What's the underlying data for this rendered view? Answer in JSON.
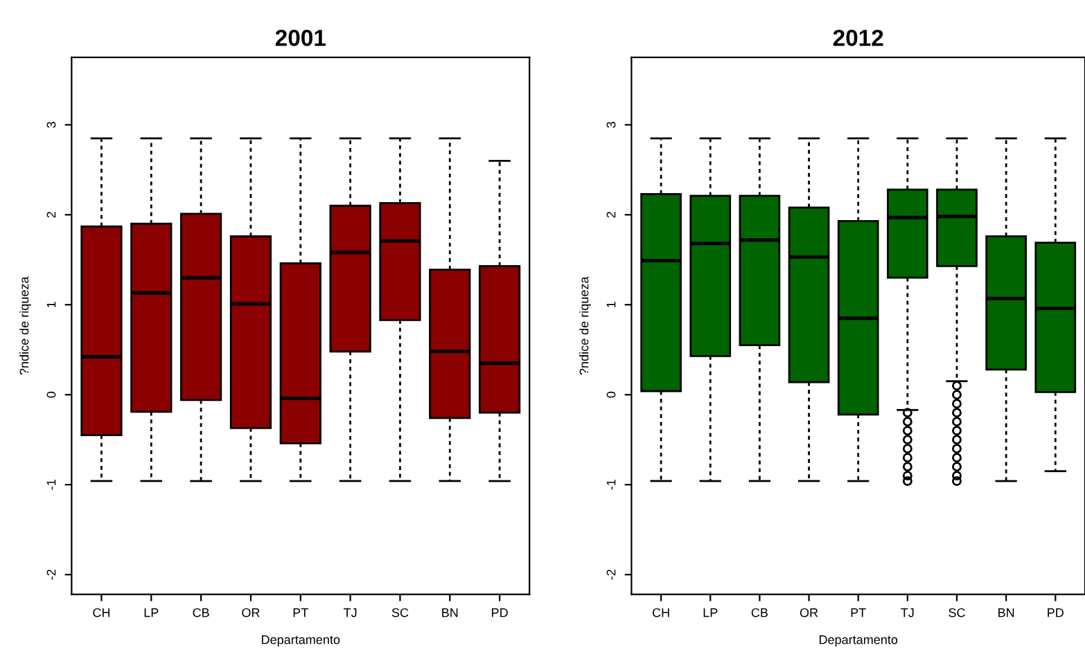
{
  "chart_data": [
    {
      "type": "box",
      "title": "2001",
      "xlabel": "Departamento",
      "ylabel": "?ndice de riqueza",
      "categories": [
        "CH",
        "LP",
        "CB",
        "OR",
        "PT",
        "TJ",
        "SC",
        "BN",
        "PD"
      ],
      "color": "#8b0000",
      "ylim": [
        -2.22,
        3.75
      ],
      "yticks": [
        -2,
        -1,
        0,
        1,
        2,
        3
      ],
      "grid": false,
      "boxes": [
        {
          "low": -0.96,
          "q1": -0.45,
          "median": 0.42,
          "q3": 1.87,
          "high": 2.85
        },
        {
          "low": -0.96,
          "q1": -0.19,
          "median": 1.13,
          "q3": 1.9,
          "high": 2.85
        },
        {
          "low": -0.96,
          "q1": -0.06,
          "median": 1.3,
          "q3": 2.01,
          "high": 2.85
        },
        {
          "low": -0.96,
          "q1": -0.37,
          "median": 1.01,
          "q3": 1.76,
          "high": 2.85
        },
        {
          "low": -0.96,
          "q1": -0.54,
          "median": -0.04,
          "q3": 1.46,
          "high": 2.85
        },
        {
          "low": -0.96,
          "q1": 0.48,
          "median": 1.58,
          "q3": 2.1,
          "high": 2.85
        },
        {
          "low": -0.96,
          "q1": 0.83,
          "median": 1.71,
          "q3": 2.13,
          "high": 2.85
        },
        {
          "low": -0.96,
          "q1": -0.26,
          "median": 0.48,
          "q3": 1.39,
          "high": 2.85
        },
        {
          "low": -0.96,
          "q1": -0.2,
          "median": 0.35,
          "q3": 1.43,
          "high": 2.6
        }
      ]
    },
    {
      "type": "box",
      "title": "2012",
      "xlabel": "Departamento",
      "ylabel": "?ndice de riqueza",
      "categories": [
        "CH",
        "LP",
        "CB",
        "OR",
        "PT",
        "TJ",
        "SC",
        "BN",
        "PD"
      ],
      "color": "#006400",
      "ylim": [
        -2.22,
        3.75
      ],
      "yticks": [
        -2,
        -1,
        0,
        1,
        2,
        3
      ],
      "grid": false,
      "boxes": [
        {
          "low": -0.96,
          "q1": 0.04,
          "median": 1.49,
          "q3": 2.23,
          "high": 2.85
        },
        {
          "low": -0.96,
          "q1": 0.43,
          "median": 1.68,
          "q3": 2.21,
          "high": 2.85
        },
        {
          "low": -0.96,
          "q1": 0.55,
          "median": 1.72,
          "q3": 2.21,
          "high": 2.85
        },
        {
          "low": -0.96,
          "q1": 0.14,
          "median": 1.53,
          "q3": 2.08,
          "high": 2.85
        },
        {
          "low": -0.96,
          "q1": -0.22,
          "median": 0.85,
          "q3": 1.93,
          "high": 2.85
        },
        {
          "low": -0.17,
          "q1": 1.3,
          "median": 1.97,
          "q3": 2.28,
          "high": 2.85,
          "outliers": [
            -0.2,
            -0.3,
            -0.4,
            -0.5,
            -0.6,
            -0.7,
            -0.8,
            -0.9,
            -0.96
          ]
        },
        {
          "low": 0.15,
          "q1": 1.43,
          "median": 1.98,
          "q3": 2.28,
          "high": 2.85,
          "outliers": [
            0.1,
            0.0,
            -0.1,
            -0.2,
            -0.3,
            -0.4,
            -0.5,
            -0.6,
            -0.7,
            -0.8,
            -0.9,
            -0.96
          ]
        },
        {
          "low": -0.96,
          "q1": 0.28,
          "median": 1.07,
          "q3": 1.76,
          "high": 2.85
        },
        {
          "low": -0.85,
          "q1": 0.03,
          "median": 0.96,
          "q3": 1.69,
          "high": 2.85
        }
      ]
    }
  ]
}
